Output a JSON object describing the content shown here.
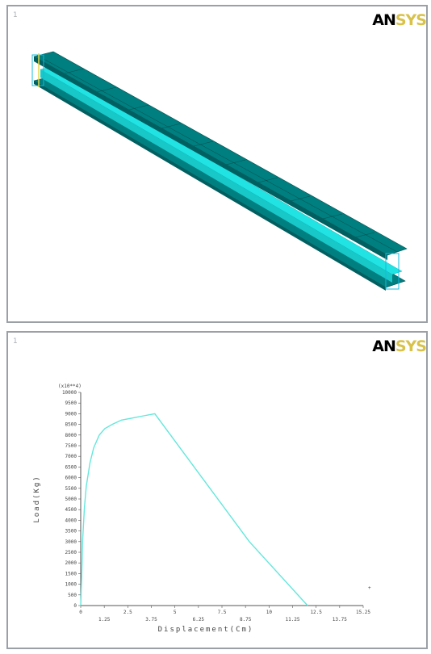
{
  "top_panel": {
    "index": "1",
    "logo_left": "AN",
    "logo_right": "SYS"
  },
  "bottom_panel": {
    "index": "1",
    "logo_left": "AN",
    "logo_right": "SYS"
  },
  "colors": {
    "beam_face": "#007f80",
    "beam_web": "#21e3e3",
    "curve": "#64e7dc",
    "frame": "#9aa0a6"
  },
  "chart_data": {
    "type": "line",
    "ylabel": "Load(Kg)",
    "xlabel": "Displacement(Cm)",
    "y_multiplier": "(x10**4)",
    "xlim": [
      0,
      15.25
    ],
    "ylim": [
      0,
      10000
    ],
    "x_ticks": [
      "0",
      "1.25",
      "2.5",
      "3.75",
      "5",
      "6.25",
      "7.5",
      "8.75",
      "10",
      "11.25",
      "12.5",
      "13.75",
      "15.25"
    ],
    "y_ticks": [
      "0",
      "500",
      "1000",
      "1500",
      "2000",
      "2500",
      "3000",
      "3500",
      "4000",
      "4500",
      "5000",
      "5500",
      "6000",
      "6500",
      "7000",
      "7500",
      "8000",
      "8500",
      "9000",
      "9500",
      "10000"
    ],
    "x": [
      0,
      0.05,
      0.1,
      0.2,
      0.3,
      0.5,
      0.7,
      1.0,
      1.3,
      1.7,
      2.2,
      2.8,
      3.4,
      4.0,
      9.1,
      12.25
    ],
    "y": [
      0,
      1200,
      3000,
      4600,
      5600,
      6700,
      7400,
      8000,
      8300,
      8500,
      8700,
      8800,
      8900,
      9000,
      3000,
      0
    ]
  }
}
